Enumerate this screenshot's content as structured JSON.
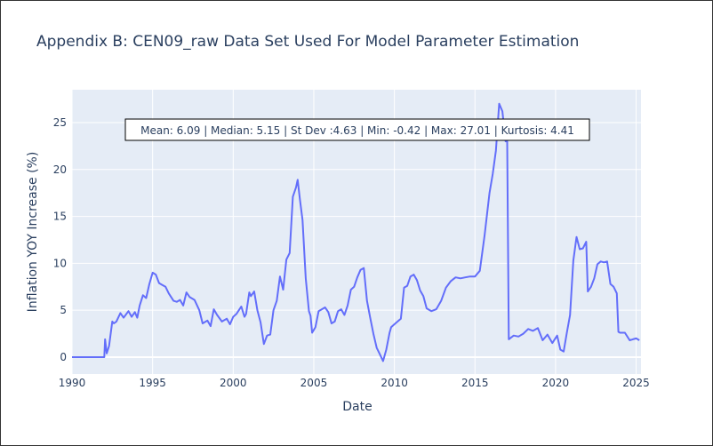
{
  "chart_data": {
    "type": "line",
    "title": "Appendix B: CEN09_raw Data Set Used For Model Parameter Estimation",
    "xlabel": "Date",
    "ylabel": "Inflation YOY Increase (%)",
    "xlim": [
      1990.0,
      2025.3
    ],
    "ylim": [
      -1.8,
      28.5
    ],
    "x_ticks": [
      1990,
      1995,
      2000,
      2005,
      2010,
      2015,
      2020,
      2025
    ],
    "y_ticks": [
      0,
      5,
      10,
      15,
      20,
      25
    ],
    "grid": true,
    "line_color": "#636efa",
    "plot_bg": "#e5ecf6",
    "annotation": "Mean: 6.09 | Median: 5.15 | St Dev :4.63 | Min: -0.42 | Max: 27.01 | Kurtosis: 4.41",
    "series": [
      {
        "x": [
          1990.0,
          1992.0,
          1992.05,
          1992.15,
          1992.3,
          1992.5,
          1992.6,
          1992.75,
          1993.0,
          1993.2,
          1993.5,
          1993.7,
          1993.9,
          1994.05,
          1994.2,
          1994.4,
          1994.6,
          1994.8,
          1995.0,
          1995.2,
          1995.4,
          1995.6,
          1995.8,
          1996.0,
          1996.3,
          1996.5,
          1996.7,
          1996.9,
          1997.1,
          1997.3,
          1997.6,
          1997.9,
          1998.1,
          1998.4,
          1998.6,
          1998.8,
          1999.0,
          1999.3,
          1999.6,
          1999.8,
          2000.0,
          2000.2,
          2000.5,
          2000.7,
          2000.8,
          2001.0,
          2001.1,
          2001.3,
          2001.5,
          2001.7,
          2001.9,
          2002.1,
          2002.3,
          2002.5,
          2002.7,
          2002.9,
          2003.1,
          2003.3,
          2003.5,
          2003.7,
          2003.9,
          2004.0,
          2004.15,
          2004.3,
          2004.5,
          2004.7,
          2004.8,
          2004.9,
          2005.1,
          2005.3,
          2005.5,
          2005.7,
          2005.9,
          2006.1,
          2006.3,
          2006.5,
          2006.7,
          2006.9,
          2007.1,
          2007.3,
          2007.5,
          2007.7,
          2007.9,
          2008.1,
          2008.3,
          2008.5,
          2008.7,
          2008.9,
          2009.1,
          2009.3,
          2009.5,
          2009.7,
          2009.8,
          2010.0,
          2010.2,
          2010.4,
          2010.6,
          2010.8,
          2011.0,
          2011.2,
          2011.4,
          2011.6,
          2011.8,
          2012.0,
          2012.3,
          2012.6,
          2012.9,
          2013.2,
          2013.5,
          2013.8,
          2014.1,
          2014.4,
          2014.7,
          2015.0,
          2015.3,
          2015.6,
          2015.9,
          2016.1,
          2016.3,
          2016.5,
          2016.7,
          2016.9,
          2017.0,
          2017.1,
          2017.4,
          2017.7,
          2018.0,
          2018.3,
          2018.6,
          2018.9,
          2019.2,
          2019.5,
          2019.8,
          2020.1,
          2020.3,
          2020.5,
          2020.7,
          2020.9,
          2021.1,
          2021.3,
          2021.5,
          2021.7,
          2021.9,
          2022.0,
          2022.2,
          2022.4,
          2022.6,
          2022.8,
          2023.0,
          2023.2,
          2023.4,
          2023.6,
          2023.8,
          2023.9,
          2024.0,
          2024.3,
          2024.6,
          2024.8,
          2025.0,
          2025.2
        ],
        "y": [
          0.0,
          0.0,
          1.9,
          0.4,
          1.2,
          3.8,
          3.6,
          3.8,
          4.7,
          4.2,
          4.9,
          4.3,
          4.8,
          4.2,
          5.5,
          6.6,
          6.3,
          7.8,
          9.0,
          8.8,
          7.9,
          7.7,
          7.5,
          6.8,
          6.0,
          5.9,
          6.1,
          5.5,
          6.9,
          6.4,
          6.1,
          5.0,
          3.6,
          3.9,
          3.3,
          5.1,
          4.5,
          3.8,
          4.1,
          3.5,
          4.3,
          4.6,
          5.4,
          4.3,
          4.6,
          6.9,
          6.5,
          7.0,
          5.0,
          3.7,
          1.4,
          2.3,
          2.4,
          5.0,
          6.0,
          8.6,
          7.2,
          10.4,
          11.1,
          17.1,
          18.1,
          18.9,
          16.7,
          14.6,
          8.4,
          4.9,
          4.4,
          2.6,
          3.2,
          4.9,
          5.1,
          5.3,
          4.8,
          3.6,
          3.8,
          4.9,
          5.1,
          4.5,
          5.5,
          7.2,
          7.5,
          8.5,
          9.3,
          9.5,
          6.0,
          4.2,
          2.5,
          1.0,
          0.3,
          -0.42,
          0.8,
          2.6,
          3.2,
          3.5,
          3.8,
          4.1,
          7.4,
          7.6,
          8.6,
          8.8,
          8.2,
          7.1,
          6.5,
          5.2,
          4.9,
          5.1,
          6.0,
          7.4,
          8.1,
          8.5,
          8.4,
          8.5,
          8.6,
          8.6,
          9.2,
          13.0,
          17.5,
          19.5,
          22.0,
          27.01,
          26.2,
          23.0,
          23.0,
          1.9,
          2.3,
          2.2,
          2.5,
          3.0,
          2.8,
          3.1,
          1.8,
          2.4,
          1.5,
          2.3,
          0.8,
          0.6,
          2.6,
          4.5,
          10.3,
          12.8,
          11.5,
          11.6,
          12.3,
          7.0,
          7.5,
          8.4,
          9.9,
          10.2,
          10.1,
          10.2,
          7.8,
          7.5,
          6.8,
          2.7,
          2.6,
          2.6,
          1.8,
          1.9,
          2.0,
          1.8
        ]
      }
    ]
  }
}
